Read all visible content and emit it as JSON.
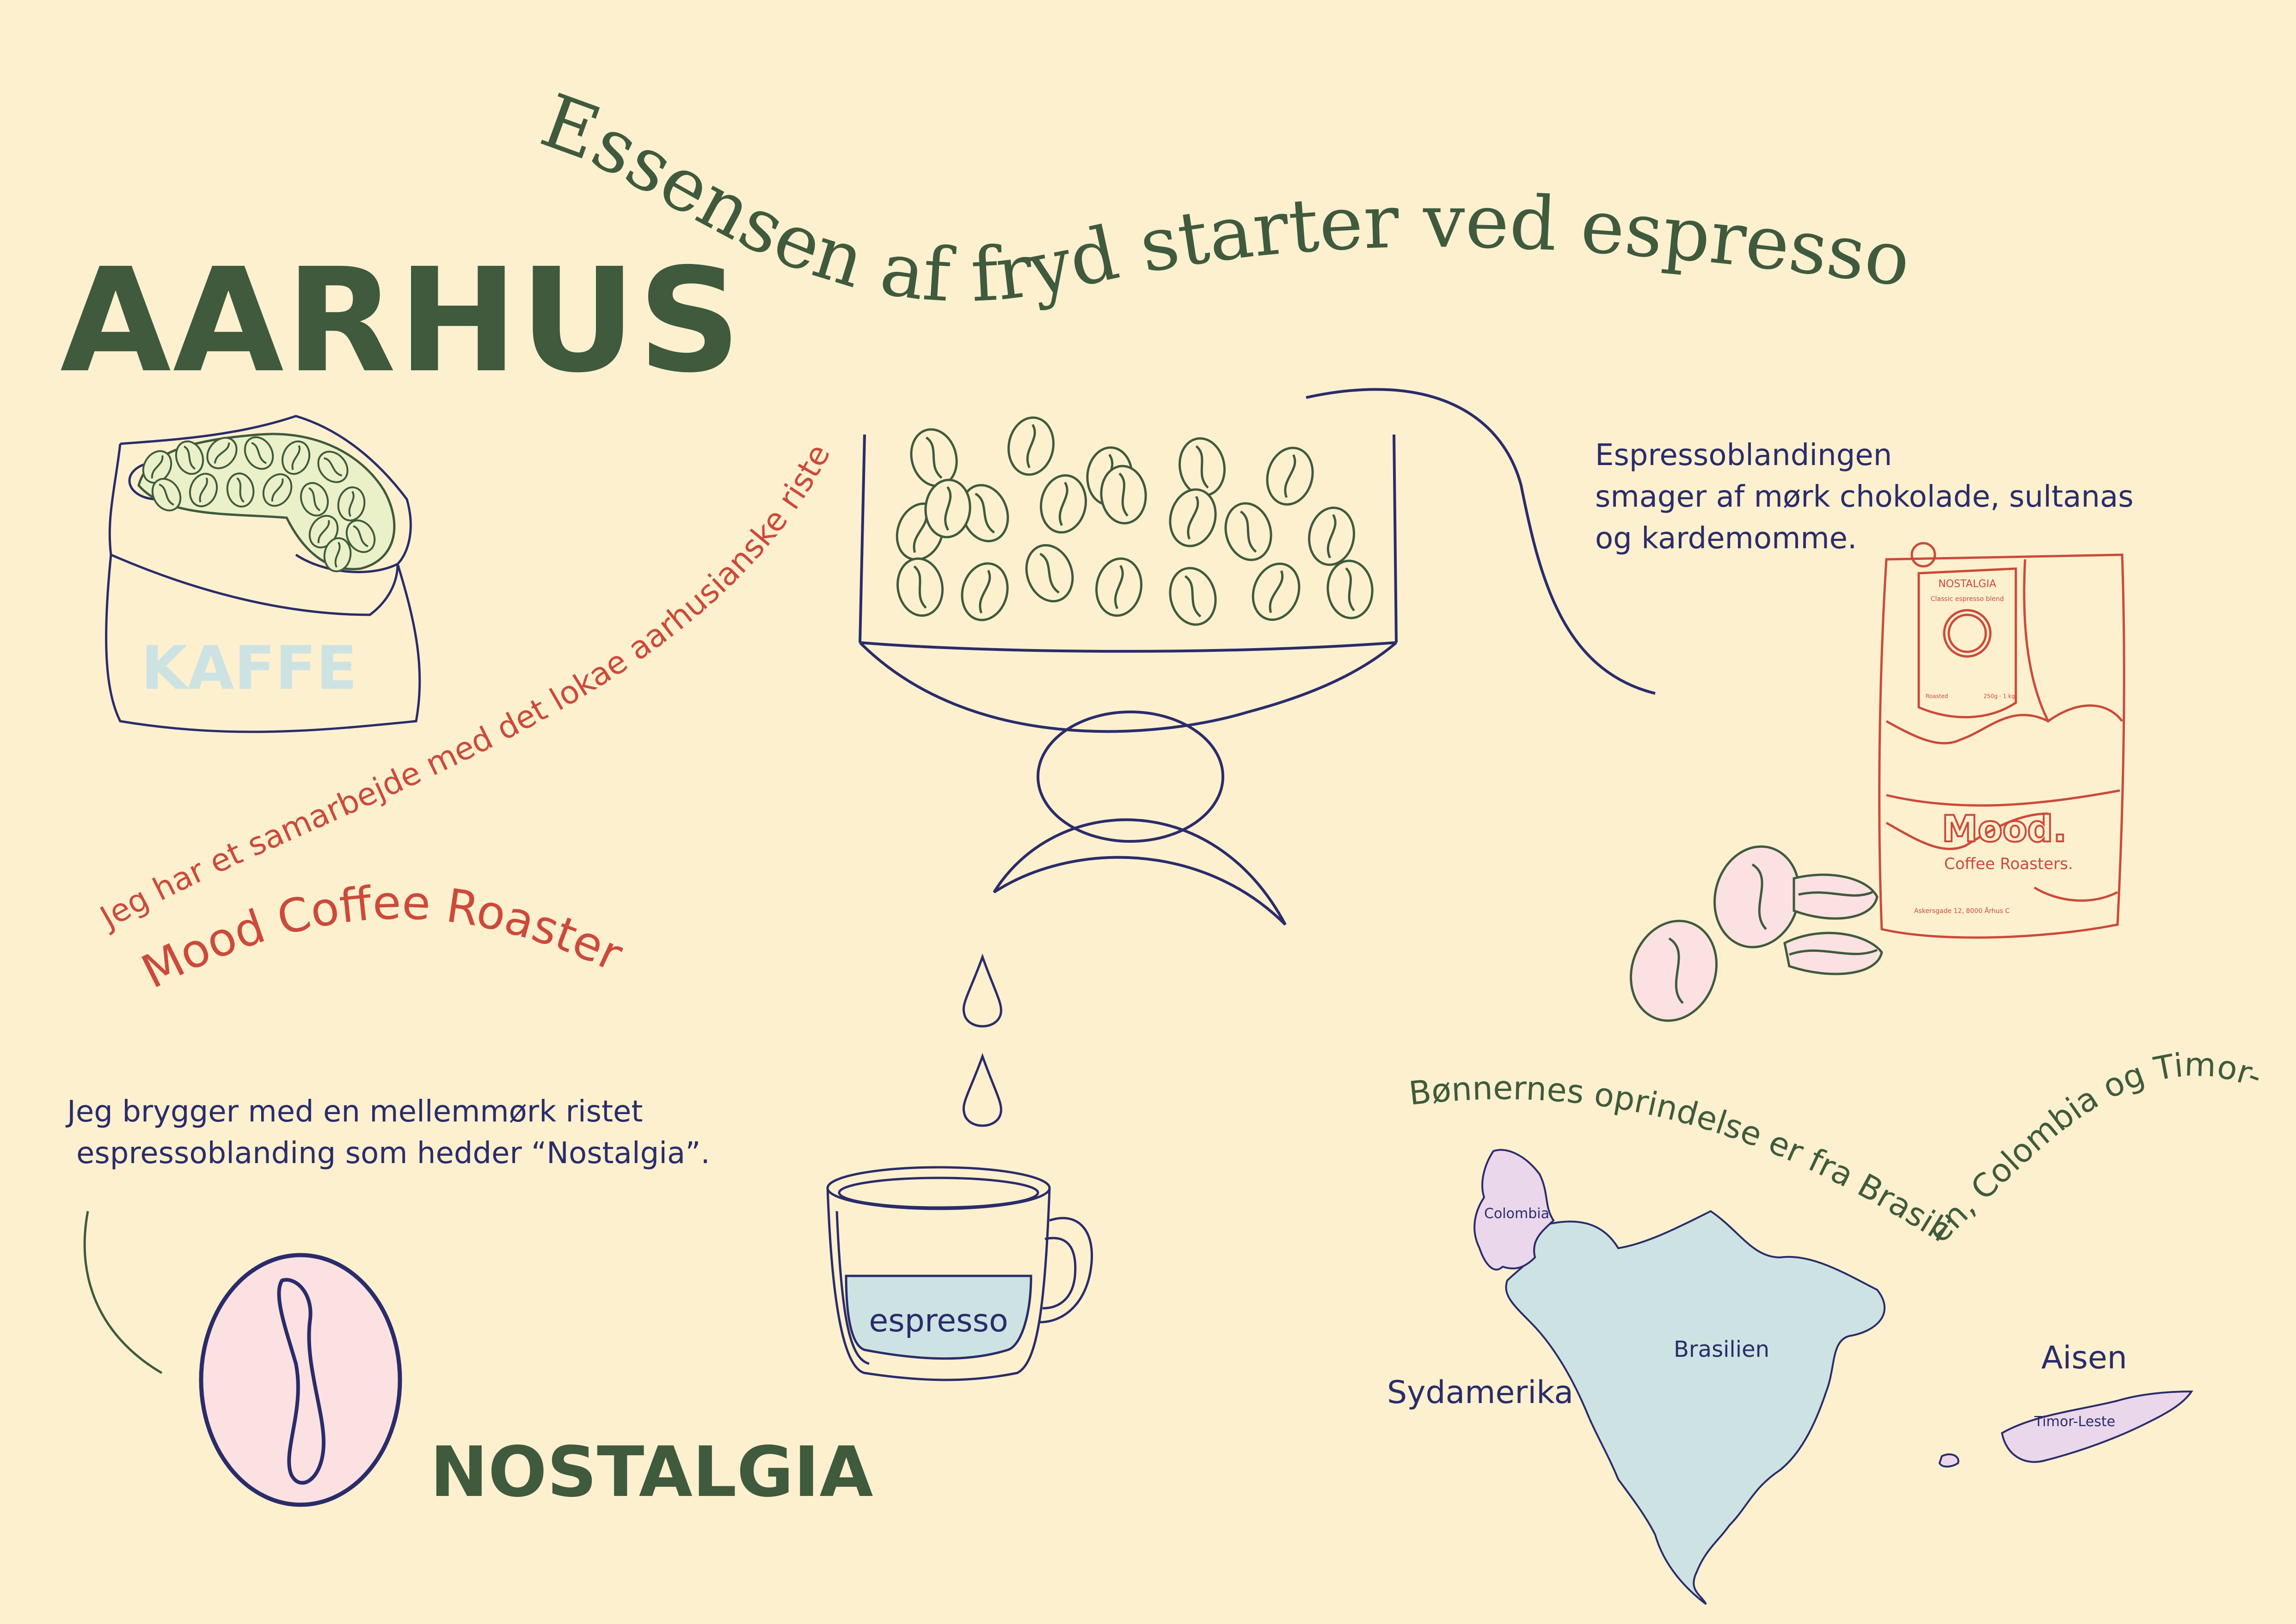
{
  "headline": "Essensen af fryd starter ved espressoen",
  "city": "AARHUS",
  "sack_label": "KAFFE",
  "collab_line": "Jeg har et samarbejde med det lokae aarhusianske risteri",
  "roaster_name": "Mood Coffee Roasters",
  "blend_intro_line1": "Jeg brygger med en mellemmørk ristet",
  "blend_intro_line2": "espressoblanding som hedder “Nostalgia”.",
  "blend_name": "NOSTALGIA",
  "taste_line1": "Espressoblandingen",
  "taste_line2": "smager af mørk chokolade, sultanas",
  "taste_line3": "og kardemomme.",
  "cup_label": "espresso",
  "bag": {
    "brand": "Mood.",
    "subtitle": "Coffee Roasters.",
    "address": "Askersgade 12, 8000 Århus C",
    "tag_title": "NOSTALGIA",
    "tag_subtitle": "Classic espresso blend",
    "tag_roasted": "Roasted",
    "tag_weight": "250g · 1 kg"
  },
  "origin_line": "Bønnernes oprindelse er fra Brasilien, Colombia og Timor-Leste.",
  "map": {
    "region_south_america": "Sydamerika",
    "region_asia": "Aisen",
    "country_colombia": "Colombia",
    "country_brazil": "Brasilien",
    "country_timor": "Timor-Leste"
  },
  "colors": {
    "background": "#fdf0cf",
    "green": "#3f5a3d",
    "red": "#cc4a3a",
    "navy": "#2a2c6a",
    "pink": "#fbe1e1",
    "light_blue": "#cde3e3",
    "lilac": "#ead7ec",
    "pale_green": "#eaf0c8"
  }
}
